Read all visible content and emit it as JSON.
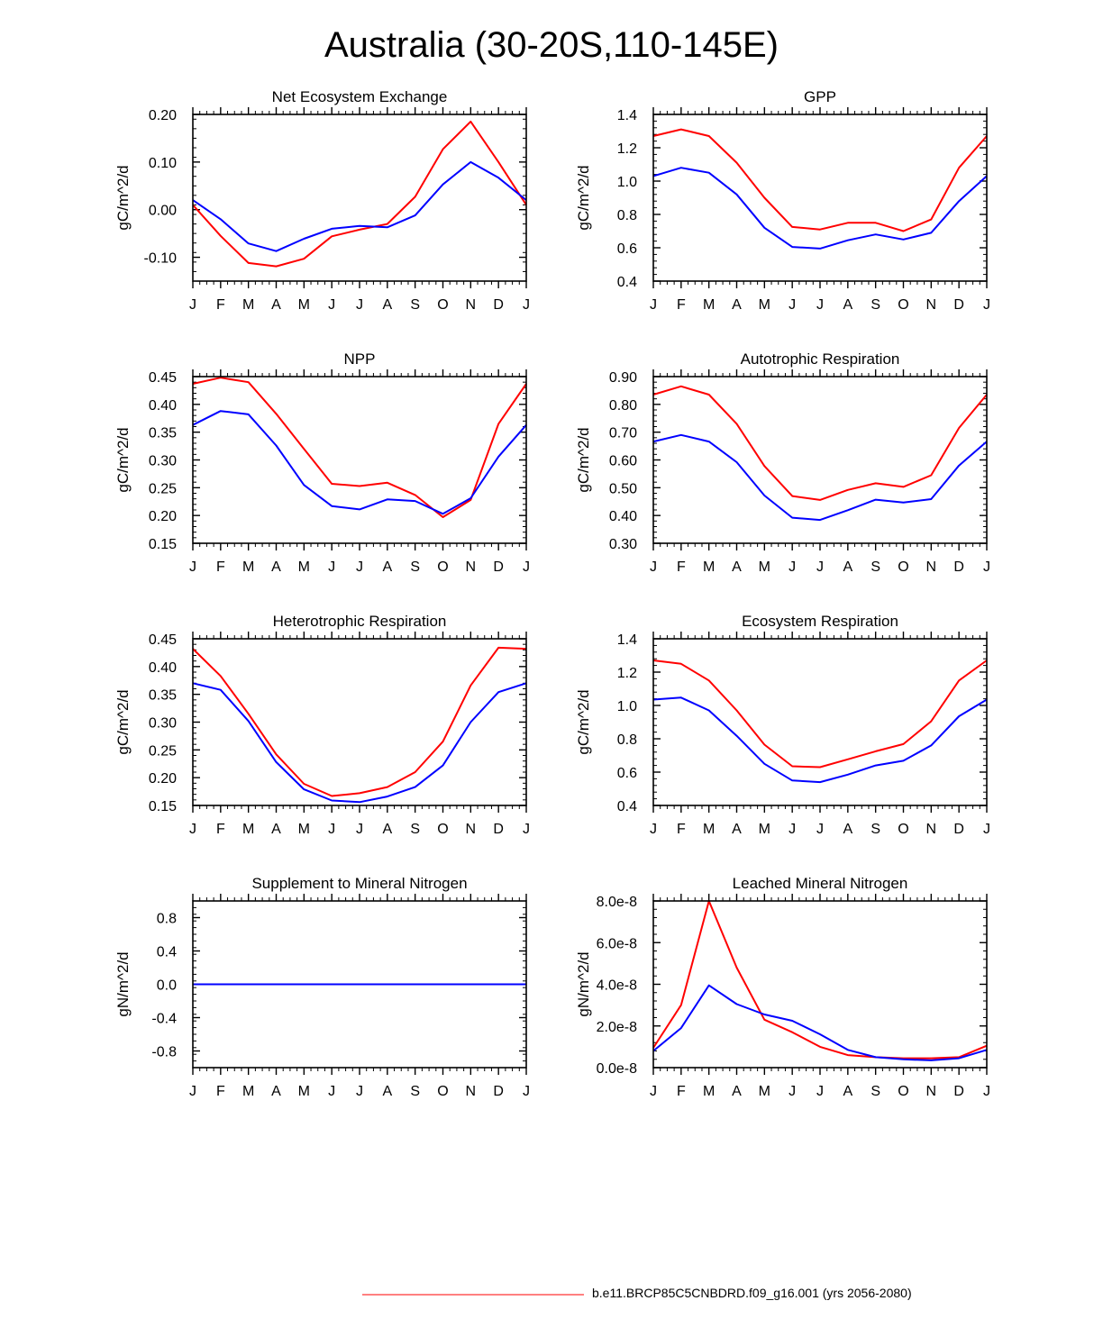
{
  "figure": {
    "title": "Australia (30-20S,110-145E)"
  },
  "legend": {
    "label": "b.e11.BRCP85C5CNBDRD.f09_g16.001 (yrs 2056-2080)",
    "color": "#ff0000"
  },
  "colors": {
    "series_a": "#ff0000",
    "series_b": "#0000ff"
  },
  "chart_data": [
    {
      "type": "line",
      "title": "Net Ecosystem Exchange",
      "ylabel": "gC/m^2/d",
      "categories": [
        "J",
        "F",
        "M",
        "A",
        "M",
        "J",
        "J",
        "A",
        "S",
        "O",
        "N",
        "D",
        "J"
      ],
      "ylim": [
        -0.15,
        0.2
      ],
      "yticks": [
        -0.1,
        0.0,
        0.1,
        0.2
      ],
      "ytick_labels": [
        "-0.10",
        "0.00",
        "0.10",
        "0.20"
      ],
      "series": [
        {
          "name": "red",
          "color": "#ff0000",
          "values": [
            0.01,
            -0.055,
            -0.112,
            -0.119,
            -0.103,
            -0.056,
            -0.042,
            -0.03,
            0.027,
            0.127,
            0.185,
            0.1,
            0.01
          ]
        },
        {
          "name": "blue",
          "color": "#0000ff",
          "values": [
            0.02,
            -0.02,
            -0.071,
            -0.087,
            -0.061,
            -0.04,
            -0.034,
            -0.037,
            -0.012,
            0.053,
            0.1,
            0.067,
            0.02
          ]
        }
      ]
    },
    {
      "type": "line",
      "title": "GPP",
      "ylabel": "gC/m^2/d",
      "categories": [
        "J",
        "F",
        "M",
        "A",
        "M",
        "J",
        "J",
        "A",
        "S",
        "O",
        "N",
        "D",
        "J"
      ],
      "ylim": [
        0.4,
        1.4
      ],
      "yticks": [
        0.4,
        0.6,
        0.8,
        1.0,
        1.2,
        1.4
      ],
      "ytick_labels": [
        "0.4",
        "0.6",
        "0.8",
        "1.0",
        "1.2",
        "1.4"
      ],
      "series": [
        {
          "name": "red",
          "color": "#ff0000",
          "values": [
            1.27,
            1.31,
            1.27,
            1.11,
            0.9,
            0.725,
            0.71,
            0.75,
            0.75,
            0.7,
            0.77,
            1.08,
            1.27
          ]
        },
        {
          "name": "blue",
          "color": "#0000ff",
          "values": [
            1.03,
            1.08,
            1.05,
            0.92,
            0.72,
            0.605,
            0.595,
            0.645,
            0.68,
            0.65,
            0.69,
            0.88,
            1.03
          ]
        }
      ]
    },
    {
      "type": "line",
      "title": "NPP",
      "ylabel": "gC/m^2/d",
      "categories": [
        "J",
        "F",
        "M",
        "A",
        "M",
        "J",
        "J",
        "A",
        "S",
        "O",
        "N",
        "D",
        "J"
      ],
      "ylim": [
        0.15,
        0.45
      ],
      "yticks": [
        0.15,
        0.2,
        0.25,
        0.3,
        0.35,
        0.4,
        0.45
      ],
      "ytick_labels": [
        "0.15",
        "0.20",
        "0.25",
        "0.30",
        "0.35",
        "0.40",
        "0.45"
      ],
      "series": [
        {
          "name": "red",
          "color": "#ff0000",
          "values": [
            0.437,
            0.448,
            0.44,
            0.383,
            0.32,
            0.257,
            0.253,
            0.259,
            0.237,
            0.197,
            0.228,
            0.365,
            0.437
          ]
        },
        {
          "name": "blue",
          "color": "#0000ff",
          "values": [
            0.363,
            0.388,
            0.382,
            0.326,
            0.255,
            0.217,
            0.211,
            0.229,
            0.226,
            0.203,
            0.231,
            0.306,
            0.363
          ]
        }
      ]
    },
    {
      "type": "line",
      "title": "Autotrophic Respiration",
      "ylabel": "gC/m^2/d",
      "categories": [
        "J",
        "F",
        "M",
        "A",
        "M",
        "J",
        "J",
        "A",
        "S",
        "O",
        "N",
        "D",
        "J"
      ],
      "ylim": [
        0.3,
        0.9
      ],
      "yticks": [
        0.3,
        0.4,
        0.5,
        0.6,
        0.7,
        0.8,
        0.9
      ],
      "ytick_labels": [
        "0.30",
        "0.40",
        "0.50",
        "0.60",
        "0.70",
        "0.80",
        "0.90"
      ],
      "series": [
        {
          "name": "red",
          "color": "#ff0000",
          "values": [
            0.835,
            0.865,
            0.835,
            0.73,
            0.578,
            0.47,
            0.456,
            0.492,
            0.516,
            0.503,
            0.545,
            0.715,
            0.835
          ]
        },
        {
          "name": "blue",
          "color": "#0000ff",
          "values": [
            0.666,
            0.69,
            0.666,
            0.592,
            0.472,
            0.392,
            0.384,
            0.419,
            0.457,
            0.447,
            0.459,
            0.58,
            0.666
          ]
        }
      ]
    },
    {
      "type": "line",
      "title": "Heterotrophic Respiration",
      "ylabel": "gC/m^2/d",
      "categories": [
        "J",
        "F",
        "M",
        "A",
        "M",
        "J",
        "J",
        "A",
        "S",
        "O",
        "N",
        "D",
        "J"
      ],
      "ylim": [
        0.15,
        0.45
      ],
      "yticks": [
        0.15,
        0.2,
        0.25,
        0.3,
        0.35,
        0.4,
        0.45
      ],
      "ytick_labels": [
        "0.15",
        "0.20",
        "0.25",
        "0.30",
        "0.35",
        "0.40",
        "0.45"
      ],
      "series": [
        {
          "name": "red",
          "color": "#ff0000",
          "values": [
            0.432,
            0.383,
            0.315,
            0.242,
            0.189,
            0.167,
            0.172,
            0.183,
            0.21,
            0.265,
            0.366,
            0.434,
            0.432
          ]
        },
        {
          "name": "blue",
          "color": "#0000ff",
          "values": [
            0.37,
            0.358,
            0.302,
            0.228,
            0.179,
            0.159,
            0.156,
            0.166,
            0.183,
            0.222,
            0.3,
            0.354,
            0.37
          ]
        }
      ]
    },
    {
      "type": "line",
      "title": "Ecosystem Respiration",
      "ylabel": "gC/m^2/d",
      "categories": [
        "J",
        "F",
        "M",
        "A",
        "M",
        "J",
        "J",
        "A",
        "S",
        "O",
        "N",
        "D",
        "J"
      ],
      "ylim": [
        0.4,
        1.4
      ],
      "yticks": [
        0.4,
        0.6,
        0.8,
        1.0,
        1.2,
        1.4
      ],
      "ytick_labels": [
        "0.4",
        "0.6",
        "0.8",
        "1.0",
        "1.2",
        "1.4"
      ],
      "series": [
        {
          "name": "red",
          "color": "#ff0000",
          "values": [
            1.27,
            1.25,
            1.15,
            0.97,
            0.765,
            0.635,
            0.63,
            0.677,
            0.725,
            0.768,
            0.905,
            1.15,
            1.27
          ]
        },
        {
          "name": "blue",
          "color": "#0000ff",
          "values": [
            1.035,
            1.047,
            0.97,
            0.818,
            0.65,
            0.55,
            0.54,
            0.585,
            0.64,
            0.668,
            0.76,
            0.935,
            1.035
          ]
        }
      ]
    },
    {
      "type": "line",
      "title": "Supplement to Mineral Nitrogen",
      "ylabel": "gN/m^2/d",
      "categories": [
        "J",
        "F",
        "M",
        "A",
        "M",
        "J",
        "J",
        "A",
        "S",
        "O",
        "N",
        "D",
        "J"
      ],
      "ylim": [
        -1.0,
        1.0
      ],
      "yticks": [
        -0.8,
        -0.4,
        0.0,
        0.4,
        0.8
      ],
      "ytick_labels": [
        "-0.8",
        "-0.4",
        "0.0",
        "0.4",
        "0.8"
      ],
      "series": [
        {
          "name": "red",
          "color": "#ff0000",
          "values": [
            0,
            0,
            0,
            0,
            0,
            0,
            0,
            0,
            0,
            0,
            0,
            0,
            0
          ]
        },
        {
          "name": "blue",
          "color": "#0000ff",
          "values": [
            0,
            0,
            0,
            0,
            0,
            0,
            0,
            0,
            0,
            0,
            0,
            0,
            0
          ]
        }
      ]
    },
    {
      "type": "line",
      "title": "Leached Mineral Nitrogen",
      "ylabel": "gN/m^2/d",
      "categories": [
        "J",
        "F",
        "M",
        "A",
        "M",
        "J",
        "J",
        "A",
        "S",
        "O",
        "N",
        "D",
        "J"
      ],
      "ylim": [
        0,
        8e-08
      ],
      "yticks": [
        0,
        2e-08,
        4e-08,
        6e-08,
        8e-08
      ],
      "ytick_labels": [
        "0.0e-8",
        "2.0e-8",
        "4.0e-8",
        "6.0e-8",
        "8.0e-8"
      ],
      "series": [
        {
          "name": "red",
          "color": "#ff0000",
          "values": [
            9.5e-09,
            3e-08,
            8e-08,
            4.8e-08,
            2.3e-08,
            1.7e-08,
            1e-08,
            6e-09,
            5e-09,
            4.5e-09,
            4.5e-09,
            5e-09,
            1.05e-08
          ]
        },
        {
          "name": "blue",
          "color": "#0000ff",
          "values": [
            8e-09,
            1.9e-08,
            3.95e-08,
            3.05e-08,
            2.55e-08,
            2.25e-08,
            1.6e-08,
            8.5e-09,
            5e-09,
            4e-09,
            3.5e-09,
            4.5e-09,
            8.5e-09
          ]
        }
      ]
    }
  ]
}
